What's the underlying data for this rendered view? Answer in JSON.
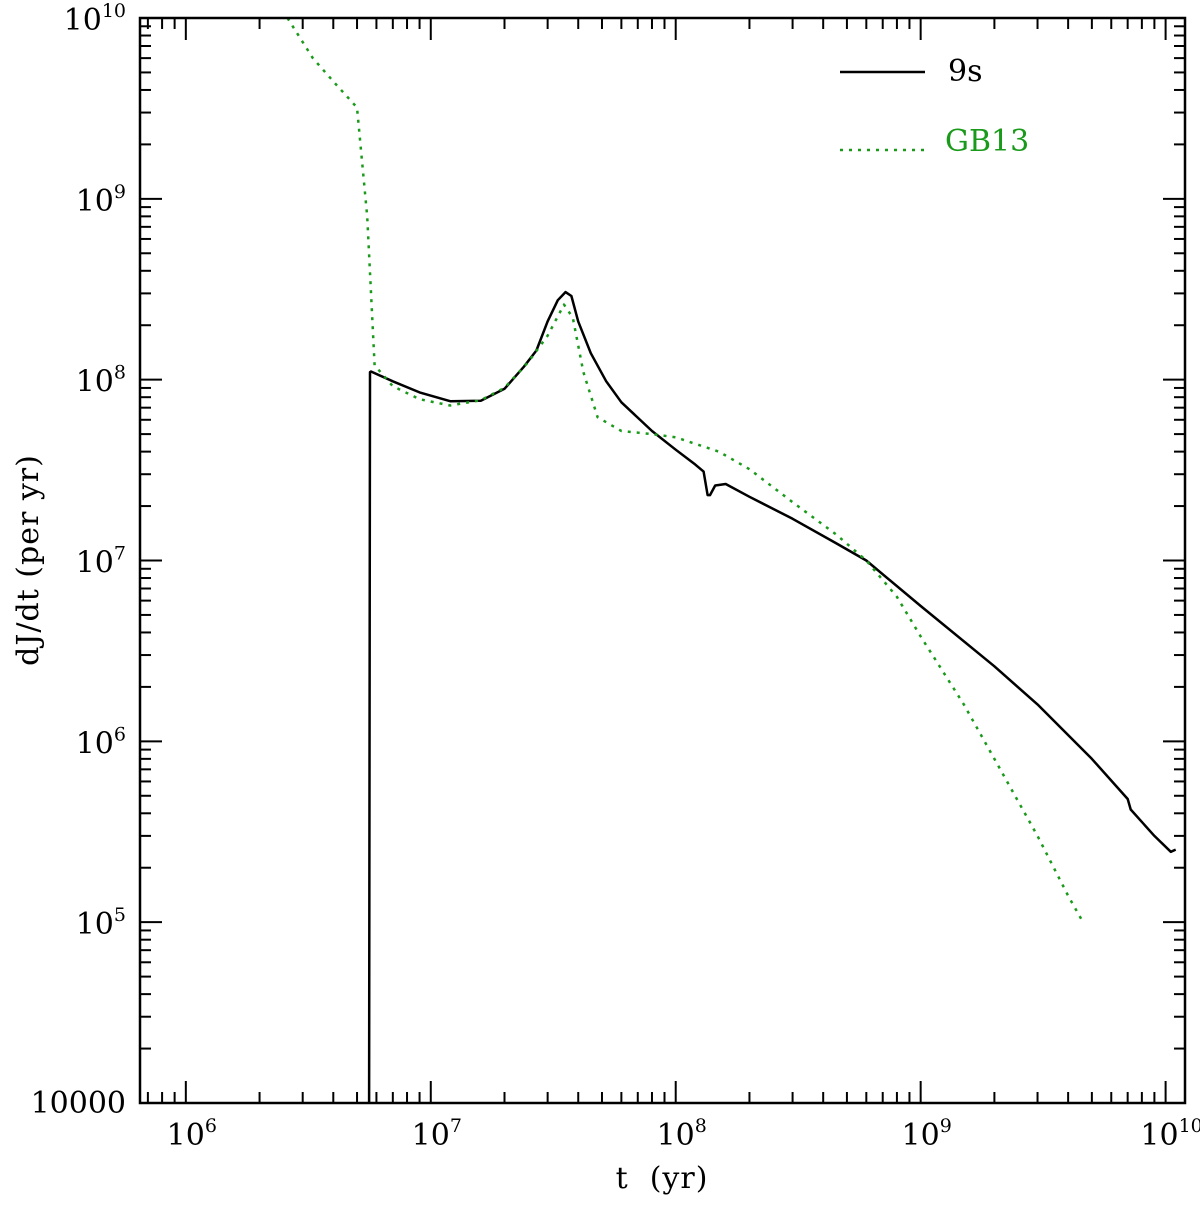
{
  "chart_data": {
    "type": "line",
    "xlabel": "t  (yr)",
    "ylabel": "dJ/dt (per yr)",
    "xscale": "log",
    "yscale": "log",
    "xlim": [
      650000,
      12000000000
    ],
    "ylim": [
      10000,
      10000000000
    ],
    "grid": false,
    "legend_position": "top-right",
    "x_ticks": [
      {
        "base": "10",
        "exp": "6",
        "value": 1000000
      },
      {
        "base": "10",
        "exp": "7",
        "value": 10000000
      },
      {
        "base": "10",
        "exp": "8",
        "value": 100000000
      },
      {
        "base": "10",
        "exp": "9",
        "value": 1000000000
      },
      {
        "base": "10",
        "exp": "10",
        "value": 10000000000
      }
    ],
    "y_ticks": [
      {
        "base": "10000",
        "exp": "",
        "value": 10000
      },
      {
        "base": "10",
        "exp": "5",
        "value": 100000
      },
      {
        "base": "10",
        "exp": "6",
        "value": 1000000
      },
      {
        "base": "10",
        "exp": "7",
        "value": 10000000
      },
      {
        "base": "10",
        "exp": "8",
        "value": 100000000
      },
      {
        "base": "10",
        "exp": "9",
        "value": 1000000000
      },
      {
        "base": "10",
        "exp": "10",
        "value": 10000000000
      }
    ],
    "series": [
      {
        "name": "9s",
        "color": "#000000",
        "style": "solid",
        "x": [
          5600000,
          5650000,
          5700000,
          7000000,
          9000000,
          12000000,
          16000000,
          20000000,
          24000000,
          27000000,
          30000000,
          33000000,
          35500000,
          37500000,
          40000000,
          45000000,
          52000000,
          60000000,
          80000000,
          100000000,
          120000000,
          130000000,
          135000000,
          138000000,
          145000000,
          160000000,
          200000000,
          300000000,
          450000000,
          600000000,
          1000000000,
          2000000000,
          3000000000,
          5000000000,
          7000000000,
          7200000000,
          9000000000,
          10500000000,
          11000000000
        ],
        "y": [
          10000,
          110000000,
          111000000,
          98000000,
          85000000,
          76000000,
          76500000,
          89000000,
          118000000,
          145000000,
          210000000,
          275000000,
          305000000,
          290000000,
          210000000,
          140000000,
          98000000,
          75000000,
          52000000,
          41000000,
          34000000,
          31000000,
          23000000,
          23000000,
          26000000,
          26500000,
          22500000,
          17000000,
          12500000,
          10000000,
          5600000,
          2600000,
          1600000,
          800000,
          480000,
          420000,
          300000,
          245000,
          252000
        ]
      },
      {
        "name": "GB13",
        "color": "#1a9a1a",
        "style": "dotted",
        "x": [
          2600000,
          3300000,
          4100000,
          5000000,
          5500000,
          5900000,
          7000000,
          9000000,
          12000000,
          16000000,
          20000000,
          25000000,
          30000000,
          35000000,
          38000000,
          42000000,
          48000000,
          60000000,
          80000000,
          100000000,
          150000000,
          200000000,
          300000000,
          450000000,
          600000000,
          800000000,
          1000000000,
          1500000000,
          2000000000,
          3000000000,
          4000000000,
          4600000000
        ],
        "y": [
          10000000000,
          6000000000,
          4300000000,
          3200000000,
          800000000,
          120000000,
          92000000,
          78000000,
          72000000,
          77000000,
          90000000,
          125000000,
          175000000,
          260000000,
          220000000,
          110000000,
          62000000,
          52000000,
          50000000,
          48000000,
          40000000,
          32000000,
          21000000,
          14000000,
          10000000,
          6300000,
          3800000,
          1600000,
          800000,
          300000,
          140000,
          100000
        ]
      }
    ]
  }
}
